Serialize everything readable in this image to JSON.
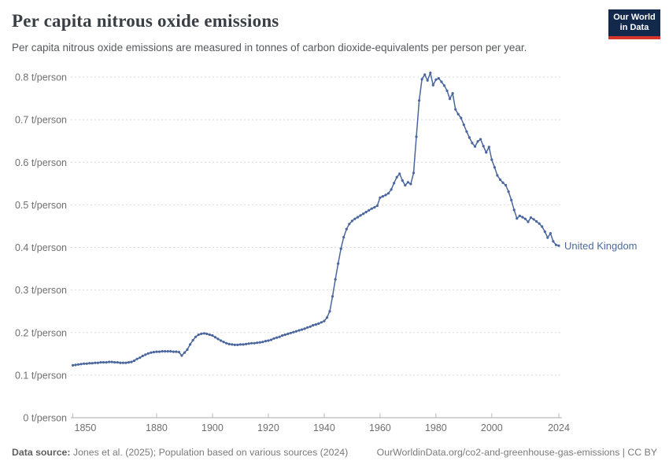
{
  "header": {
    "title": "Per capita nitrous oxide emissions",
    "subtitle": "Per capita nitrous oxide emissions are measured in tonnes of carbon dioxide-equivalents per person per year.",
    "logo": {
      "line1": "Our World",
      "line2": "in Data"
    }
  },
  "footer": {
    "datasource_label": "Data source:",
    "datasource_text": " Jones et al. (2025); Population based on various sources (2024)",
    "link_text": "OurWorldinData.org/co2-and-greenhouse-gas-emissions | CC BY"
  },
  "colors": {
    "line": "#4a669e",
    "entity_label": "#4c6a9c",
    "grid": "#d9d9d9",
    "axis": "#a8a8a8",
    "tick": "#b8b8b8",
    "tick_text": "#6f6f6f",
    "logo_bg": "#12294b",
    "logo_stripe": "#d7352c"
  },
  "chart_data": {
    "type": "line",
    "title": "Per capita nitrous oxide emissions",
    "unit": "t/person",
    "grid": "horizontal-dashed",
    "legend_position": "end-of-line-label",
    "xlim": [
      1850,
      2024
    ],
    "ylim": [
      0,
      0.8
    ],
    "x": {
      "start": 1850,
      "end": 2024,
      "step": 1
    },
    "x_ticks": [
      {
        "v": 1850,
        "label": "1850"
      },
      {
        "v": 1880,
        "label": "1880"
      },
      {
        "v": 1900,
        "label": "1900"
      },
      {
        "v": 1920,
        "label": "1920"
      },
      {
        "v": 1940,
        "label": "1940"
      },
      {
        "v": 1960,
        "label": "1960"
      },
      {
        "v": 1980,
        "label": "1980"
      },
      {
        "v": 2000,
        "label": "2000"
      },
      {
        "v": 2024,
        "label": "2024"
      }
    ],
    "y_ticks": [
      {
        "v": 0.0,
        "label": "0 t/person"
      },
      {
        "v": 0.1,
        "label": "0.1 t/person"
      },
      {
        "v": 0.2,
        "label": "0.2 t/person"
      },
      {
        "v": 0.3,
        "label": "0.3 t/person"
      },
      {
        "v": 0.4,
        "label": "0.4 t/person"
      },
      {
        "v": 0.5,
        "label": "0.5 t/person"
      },
      {
        "v": 0.6,
        "label": "0.6 t/person"
      },
      {
        "v": 0.7,
        "label": "0.7 t/person"
      },
      {
        "v": 0.8,
        "label": "0.8 t/person"
      }
    ],
    "series": [
      {
        "name": "United Kingdom",
        "color": "#4a669e",
        "values": [
          0.123,
          0.124,
          0.125,
          0.126,
          0.127,
          0.127,
          0.128,
          0.128,
          0.129,
          0.129,
          0.13,
          0.13,
          0.13,
          0.131,
          0.131,
          0.13,
          0.13,
          0.129,
          0.129,
          0.129,
          0.13,
          0.131,
          0.134,
          0.138,
          0.141,
          0.145,
          0.148,
          0.151,
          0.153,
          0.154,
          0.155,
          0.155,
          0.156,
          0.156,
          0.156,
          0.156,
          0.155,
          0.155,
          0.154,
          0.146,
          0.153,
          0.16,
          0.172,
          0.182,
          0.19,
          0.195,
          0.197,
          0.198,
          0.197,
          0.195,
          0.193,
          0.189,
          0.185,
          0.181,
          0.178,
          0.175,
          0.173,
          0.172,
          0.171,
          0.171,
          0.172,
          0.172,
          0.173,
          0.174,
          0.175,
          0.175,
          0.176,
          0.177,
          0.178,
          0.18,
          0.181,
          0.183,
          0.186,
          0.188,
          0.19,
          0.193,
          0.195,
          0.197,
          0.199,
          0.201,
          0.203,
          0.205,
          0.207,
          0.209,
          0.212,
          0.214,
          0.217,
          0.219,
          0.221,
          0.224,
          0.227,
          0.235,
          0.25,
          0.285,
          0.325,
          0.362,
          0.397,
          0.424,
          0.443,
          0.455,
          0.462,
          0.467,
          0.471,
          0.475,
          0.479,
          0.483,
          0.487,
          0.491,
          0.494,
          0.498,
          0.517,
          0.52,
          0.523,
          0.527,
          0.536,
          0.551,
          0.565,
          0.573,
          0.557,
          0.546,
          0.553,
          0.549,
          0.575,
          0.66,
          0.745,
          0.795,
          0.806,
          0.792,
          0.81,
          0.781,
          0.794,
          0.797,
          0.789,
          0.78,
          0.768,
          0.749,
          0.762,
          0.724,
          0.713,
          0.704,
          0.688,
          0.672,
          0.658,
          0.645,
          0.637,
          0.649,
          0.654,
          0.638,
          0.623,
          0.636,
          0.606,
          0.588,
          0.569,
          0.559,
          0.552,
          0.546,
          0.531,
          0.511,
          0.488,
          0.468,
          0.474,
          0.471,
          0.467,
          0.46,
          0.47,
          0.466,
          0.461,
          0.456,
          0.449,
          0.437,
          0.423,
          0.433,
          0.414,
          0.406,
          0.404
        ]
      }
    ]
  }
}
